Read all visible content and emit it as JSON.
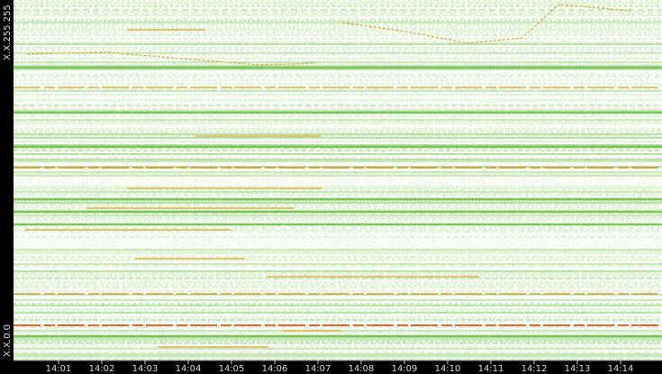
{
  "y_axis": {
    "labels": [
      "X.X.255.255",
      "X.X.0.0"
    ]
  },
  "x_axis": {
    "labels": [
      "14:01",
      "14:02",
      "14:03",
      "14:04",
      "14:05",
      "14:06",
      "14:07",
      "14:08",
      "14:09",
      "14:10",
      "14:11",
      "14:12",
      "14:13",
      "14:14"
    ]
  }
}
